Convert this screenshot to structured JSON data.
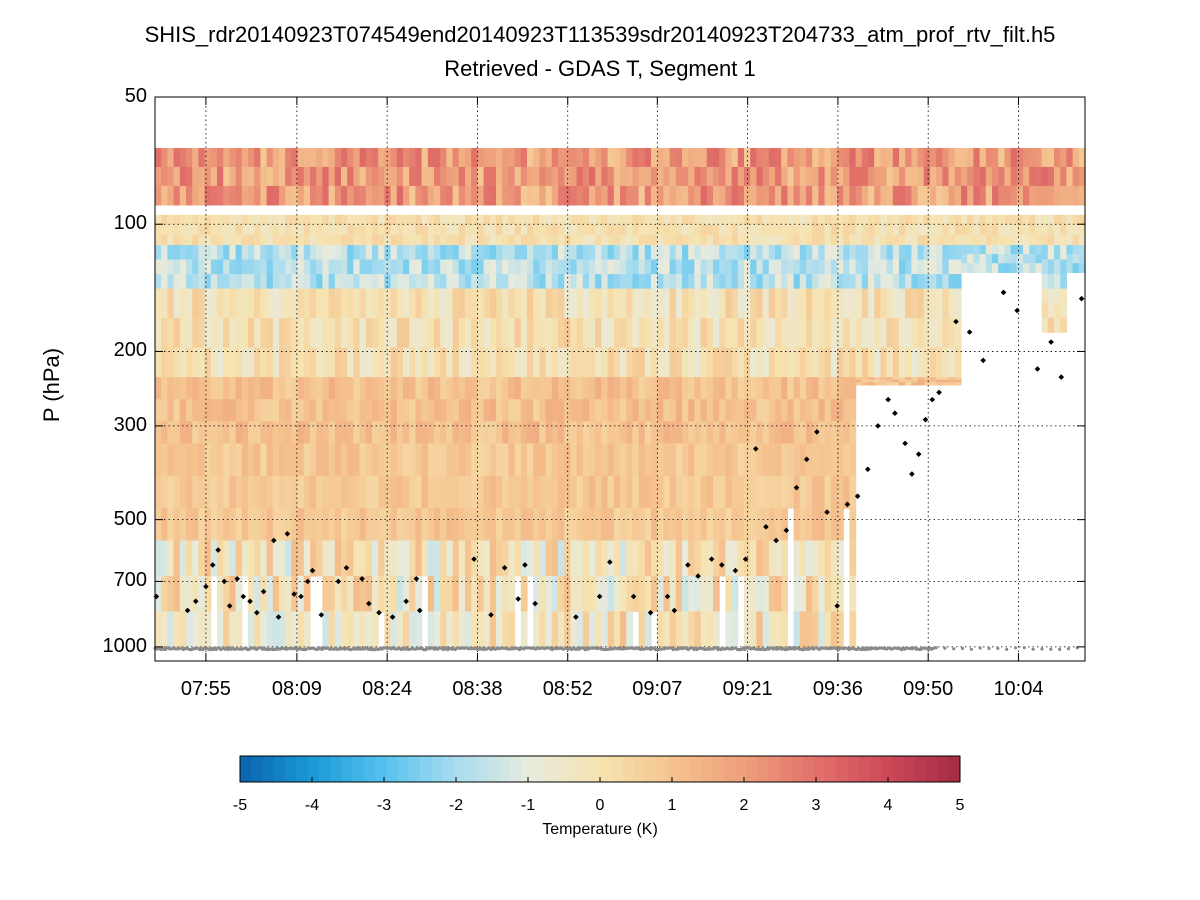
{
  "chart_data": {
    "type": "heatmap",
    "title": "SHIS_rdr20140923T074549end20140923T113539sdr20140923T204733_atm_prof_rtv_filt.h5",
    "subtitle": "Retrieved - GDAS T, Segment 1",
    "xlabel": "",
    "ylabel": "P (hPa)",
    "y_scale": "log",
    "y_reversed": true,
    "ylim": [
      50,
      1080
    ],
    "xlim_minutes": [
      775,
      912
    ],
    "x_ticks": [
      {
        "label": "07:55",
        "minutes": 782.5
      },
      {
        "label": "08:09",
        "minutes": 795.9
      },
      {
        "label": "08:24",
        "minutes": 809.2
      },
      {
        "label": "08:38",
        "minutes": 822.5
      },
      {
        "label": "08:52",
        "minutes": 835.8
      },
      {
        "label": "09:07",
        "minutes": 849.0
      },
      {
        "label": "09:21",
        "minutes": 862.3
      },
      {
        "label": "09:36",
        "minutes": 875.6
      },
      {
        "label": "09:50",
        "minutes": 888.9
      },
      {
        "label": "10:04",
        "minutes": 902.2
      }
    ],
    "y_ticks": [
      {
        "label": "50",
        "value": 50
      },
      {
        "label": "100",
        "value": 100
      },
      {
        "label": "200",
        "value": 200
      },
      {
        "label": "300",
        "value": 300
      },
      {
        "label": "500",
        "value": 500
      },
      {
        "label": "700",
        "value": 700
      },
      {
        "label": "1000",
        "value": 1000
      }
    ],
    "grid": true,
    "colorbar": {
      "label": "Temperature (K)",
      "range": [
        -5,
        5
      ],
      "ticks": [
        "-5",
        "-4",
        "-3",
        "-2",
        "-1",
        "0",
        "1",
        "2",
        "3",
        "4",
        "5"
      ],
      "colormap": [
        "#0a63ac",
        "#1a9ad6",
        "#55c2ee",
        "#a8dcef",
        "#e7ebde",
        "#f6e3b0",
        "#f5c38f",
        "#ee9f7b",
        "#e2716a",
        "#cc4858",
        "#a32b45"
      ]
    },
    "data_layers": [
      {
        "p_min": 66,
        "p_max": 90,
        "value_range": [
          0.8,
          3.2
        ],
        "description": "warm layer near 70-90 hPa"
      },
      {
        "p_min": 95,
        "p_max": 112,
        "value_range": [
          -0.5,
          0.5
        ]
      },
      {
        "p_min": 112,
        "p_max": 142,
        "value_range": [
          -2.6,
          -0.8
        ],
        "description": "cold layer near 120-140 hPa"
      },
      {
        "p_min": 142,
        "p_max": 230,
        "value_range": [
          -0.8,
          0.8
        ]
      },
      {
        "p_min": 230,
        "p_max": 330,
        "value_range": [
          0.5,
          1.6
        ]
      },
      {
        "p_min": 330,
        "p_max": 560,
        "value_range": [
          0.4,
          1.3
        ]
      },
      {
        "p_min": 560,
        "p_max": 1000,
        "value_range": [
          -1.5,
          1.2
        ]
      }
    ],
    "series": [
      {
        "name": "cloud top pressure",
        "marker": "black diamond",
        "points": [
          [
            775.2,
            760
          ],
          [
            779.8,
            820
          ],
          [
            781.0,
            780
          ],
          [
            782.5,
            720
          ],
          [
            783.5,
            640
          ],
          [
            784.3,
            590
          ],
          [
            785.2,
            700
          ],
          [
            786.0,
            800
          ],
          [
            787.1,
            690
          ],
          [
            788.0,
            760
          ],
          [
            789.0,
            780
          ],
          [
            790.0,
            830
          ],
          [
            791.0,
            740
          ],
          [
            792.5,
            560
          ],
          [
            793.2,
            850
          ],
          [
            794.5,
            540
          ],
          [
            795.5,
            750
          ],
          [
            796.5,
            760
          ],
          [
            797.5,
            700
          ],
          [
            798.2,
            660
          ],
          [
            799.5,
            840
          ],
          [
            802.0,
            700
          ],
          [
            803.2,
            650
          ],
          [
            805.5,
            690
          ],
          [
            806.5,
            790
          ],
          [
            808.0,
            830
          ],
          [
            810.0,
            850
          ],
          [
            812.0,
            780
          ],
          [
            813.5,
            690
          ],
          [
            814.0,
            820
          ],
          [
            822.0,
            620
          ],
          [
            824.5,
            840
          ],
          [
            826.5,
            650
          ],
          [
            828.5,
            770
          ],
          [
            829.5,
            640
          ],
          [
            831.0,
            790
          ],
          [
            837.0,
            850
          ],
          [
            840.5,
            760
          ],
          [
            842.0,
            630
          ],
          [
            845.5,
            760
          ],
          [
            848.0,
            830
          ],
          [
            850.5,
            760
          ],
          [
            851.5,
            820
          ],
          [
            853.5,
            640
          ],
          [
            855.0,
            680
          ],
          [
            857.0,
            620
          ],
          [
            858.5,
            640
          ],
          [
            860.5,
            660
          ],
          [
            862.0,
            620
          ],
          [
            863.5,
            340
          ],
          [
            865.0,
            520
          ],
          [
            866.5,
            560
          ],
          [
            868.0,
            530
          ],
          [
            869.5,
            420
          ],
          [
            871.0,
            360
          ],
          [
            872.5,
            310
          ],
          [
            874.0,
            480
          ],
          [
            875.5,
            800
          ],
          [
            877.0,
            460
          ],
          [
            878.5,
            440
          ],
          [
            880.0,
            380
          ],
          [
            881.5,
            300
          ],
          [
            883.0,
            260
          ],
          [
            884.0,
            280
          ],
          [
            885.5,
            330
          ],
          [
            886.5,
            390
          ],
          [
            887.5,
            350
          ],
          [
            888.5,
            290
          ],
          [
            889.5,
            260
          ],
          [
            890.5,
            250
          ],
          [
            893.0,
            170
          ],
          [
            895.0,
            180
          ],
          [
            897.0,
            210
          ],
          [
            900.0,
            145
          ],
          [
            902.0,
            160
          ],
          [
            905.0,
            220
          ],
          [
            907.0,
            190
          ],
          [
            908.5,
            230
          ],
          [
            911.5,
            150
          ]
        ]
      },
      {
        "name": "surface pressure",
        "marker": "gray dot",
        "value_hPa": 1010
      }
    ]
  }
}
